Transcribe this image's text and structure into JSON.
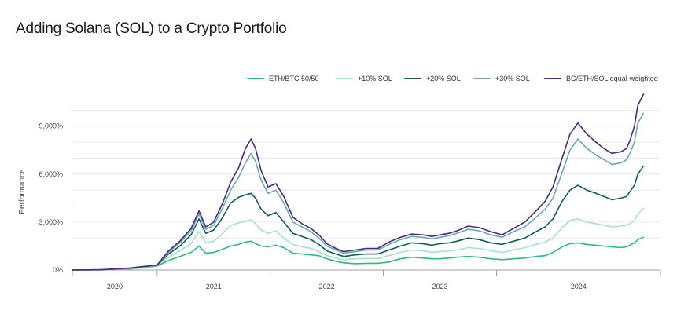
{
  "title": "Adding Solana (SOL) to a Crypto Portfolio",
  "chart_data": {
    "type": "line",
    "title": "Adding Solana (SOL) to a Crypto Portfolio",
    "ylabel": "Performance",
    "xlabel": "",
    "x_ticks": [
      "2020",
      "2021",
      "2022",
      "2023",
      "2024"
    ],
    "y_ticks": [
      "0%",
      "3,000%",
      "6,000%",
      "9,000%"
    ],
    "y_tick_values": [
      0,
      3000,
      6000,
      9000
    ],
    "ylim": [
      0,
      11000
    ],
    "xlim": [
      2019.75,
      2024.95
    ],
    "legend_position": "top-right",
    "grid": "horizontal",
    "x": [
      2019.75,
      2020.0,
      2020.25,
      2020.5,
      2020.6,
      2020.7,
      2020.8,
      2020.87,
      2020.93,
      2021.0,
      2021.08,
      2021.15,
      2021.22,
      2021.28,
      2021.33,
      2021.37,
      2021.42,
      2021.48,
      2021.55,
      2021.62,
      2021.7,
      2021.78,
      2021.86,
      2021.93,
      2022.0,
      2022.08,
      2022.15,
      2022.25,
      2022.35,
      2022.45,
      2022.55,
      2022.65,
      2022.75,
      2022.85,
      2022.93,
      2023.0,
      2023.08,
      2023.15,
      2023.25,
      2023.35,
      2023.45,
      2023.55,
      2023.65,
      2023.75,
      2023.85,
      2023.93,
      2024.0,
      2024.08,
      2024.15,
      2024.22,
      2024.3,
      2024.38,
      2024.45,
      2024.52,
      2024.6,
      2024.65,
      2024.68,
      2024.72,
      2024.75,
      2024.8
    ],
    "series": [
      {
        "name": "ETH/BTC 50/50",
        "color": "#2dba7c",
        "values": [
          0,
          5,
          60,
          250,
          600,
          850,
          1100,
          1500,
          1050,
          1100,
          1300,
          1500,
          1600,
          1750,
          1800,
          1650,
          1500,
          1450,
          1550,
          1400,
          1050,
          1000,
          950,
          900,
          700,
          550,
          450,
          400,
          420,
          420,
          500,
          700,
          800,
          750,
          700,
          700,
          750,
          800,
          850,
          800,
          700,
          650,
          700,
          750,
          850,
          900,
          1100,
          1450,
          1650,
          1700,
          1600,
          1550,
          1500,
          1450,
          1400,
          1450,
          1550,
          1700,
          1900,
          2050
        ]
      },
      {
        "name": "+10% SOL",
        "color": "#a6e3c3",
        "values": [
          0,
          10,
          80,
          280,
          800,
          1200,
          1650,
          2400,
          1700,
          1800,
          2300,
          2800,
          2950,
          3050,
          3150,
          2900,
          2500,
          2300,
          2450,
          2000,
          1600,
          1450,
          1350,
          1150,
          900,
          750,
          650,
          700,
          720,
          720,
          900,
          1100,
          1250,
          1200,
          1100,
          1150,
          1200,
          1250,
          1400,
          1350,
          1200,
          1100,
          1250,
          1400,
          1600,
          1750,
          2000,
          2650,
          3100,
          3200,
          3000,
          2900,
          2800,
          2700,
          2750,
          2800,
          2900,
          3100,
          3500,
          3850
        ]
      },
      {
        "name": "+20% SOL",
        "color": "#0d5a5c",
        "values": [
          0,
          15,
          100,
          300,
          1000,
          1500,
          2200,
          3200,
          2300,
          2500,
          3300,
          4200,
          4550,
          4700,
          4800,
          4500,
          3800,
          3400,
          3600,
          3000,
          2300,
          2100,
          1900,
          1600,
          1200,
          1000,
          850,
          950,
          1000,
          1000,
          1250,
          1500,
          1700,
          1650,
          1550,
          1650,
          1700,
          1800,
          2000,
          1900,
          1700,
          1600,
          1800,
          2000,
          2400,
          2700,
          3200,
          4300,
          5000,
          5300,
          5000,
          4800,
          4600,
          4400,
          4500,
          4600,
          4900,
          5300,
          6000,
          6500
        ]
      },
      {
        "name": "+30% SOL",
        "color": "#6aa9b0",
        "values": [
          0,
          18,
          110,
          310,
          1100,
          1700,
          2450,
          3500,
          2550,
          2800,
          3900,
          5000,
          5800,
          6700,
          7300,
          6800,
          5600,
          4800,
          5000,
          4200,
          3000,
          2700,
          2400,
          2000,
          1500,
          1250,
          1050,
          1150,
          1250,
          1250,
          1600,
          1900,
          2100,
          2050,
          1950,
          2050,
          2150,
          2300,
          2550,
          2450,
          2200,
          2050,
          2400,
          2700,
          3300,
          3800,
          4500,
          6100,
          7500,
          8200,
          7600,
          7200,
          6900,
          6600,
          6700,
          6900,
          7300,
          8000,
          9200,
          9800
        ]
      },
      {
        "name": "BC/ETH/SOL equal-weighted",
        "color": "#4a2a7a",
        "values": [
          0,
          20,
          120,
          320,
          1200,
          1800,
          2600,
          3700,
          2700,
          3000,
          4200,
          5500,
          6400,
          7600,
          8200,
          7600,
          6200,
          5200,
          5400,
          4600,
          3300,
          2900,
          2600,
          2200,
          1650,
          1350,
          1150,
          1250,
          1350,
          1350,
          1750,
          2050,
          2250,
          2200,
          2100,
          2200,
          2300,
          2450,
          2750,
          2650,
          2400,
          2200,
          2600,
          3000,
          3700,
          4300,
          5200,
          7000,
          8500,
          9200,
          8500,
          8000,
          7600,
          7300,
          7400,
          7600,
          8100,
          9000,
          10300,
          11000
        ]
      }
    ]
  }
}
